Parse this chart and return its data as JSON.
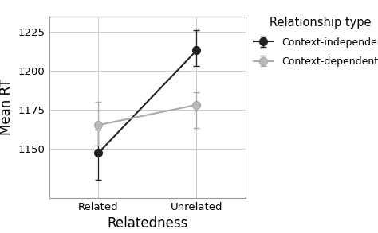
{
  "x_labels": [
    "Related",
    "Unrelated"
  ],
  "x_positions": [
    1,
    2
  ],
  "series": [
    {
      "label": "Context-independent",
      "color": "#222222",
      "marker": "o",
      "marker_facecolor": "#222222",
      "values": [
        1147,
        1213
      ],
      "yerr_lower": [
        17,
        10
      ],
      "yerr_upper": [
        15,
        13
      ]
    },
    {
      "label": "Context-dependent",
      "color": "#aaaaaa",
      "marker": "o",
      "marker_facecolor": "#bbbbbb",
      "values": [
        1165,
        1178
      ],
      "yerr_lower": [
        13,
        15
      ],
      "yerr_upper": [
        15,
        8
      ]
    }
  ],
  "xlabel": "Relatedness",
  "ylabel": "Mean RT",
  "ylim": [
    1118,
    1235
  ],
  "yticks": [
    1150,
    1175,
    1200,
    1225
  ],
  "legend_title": "Relationship type",
  "legend_title_fontsize": 10.5,
  "legend_fontsize": 9.0,
  "axis_label_fontsize": 12,
  "tick_fontsize": 9.5,
  "background_color": "#ffffff",
  "grid_color": "#cccccc",
  "capsize": 3,
  "linewidth": 1.5,
  "markersize": 7
}
